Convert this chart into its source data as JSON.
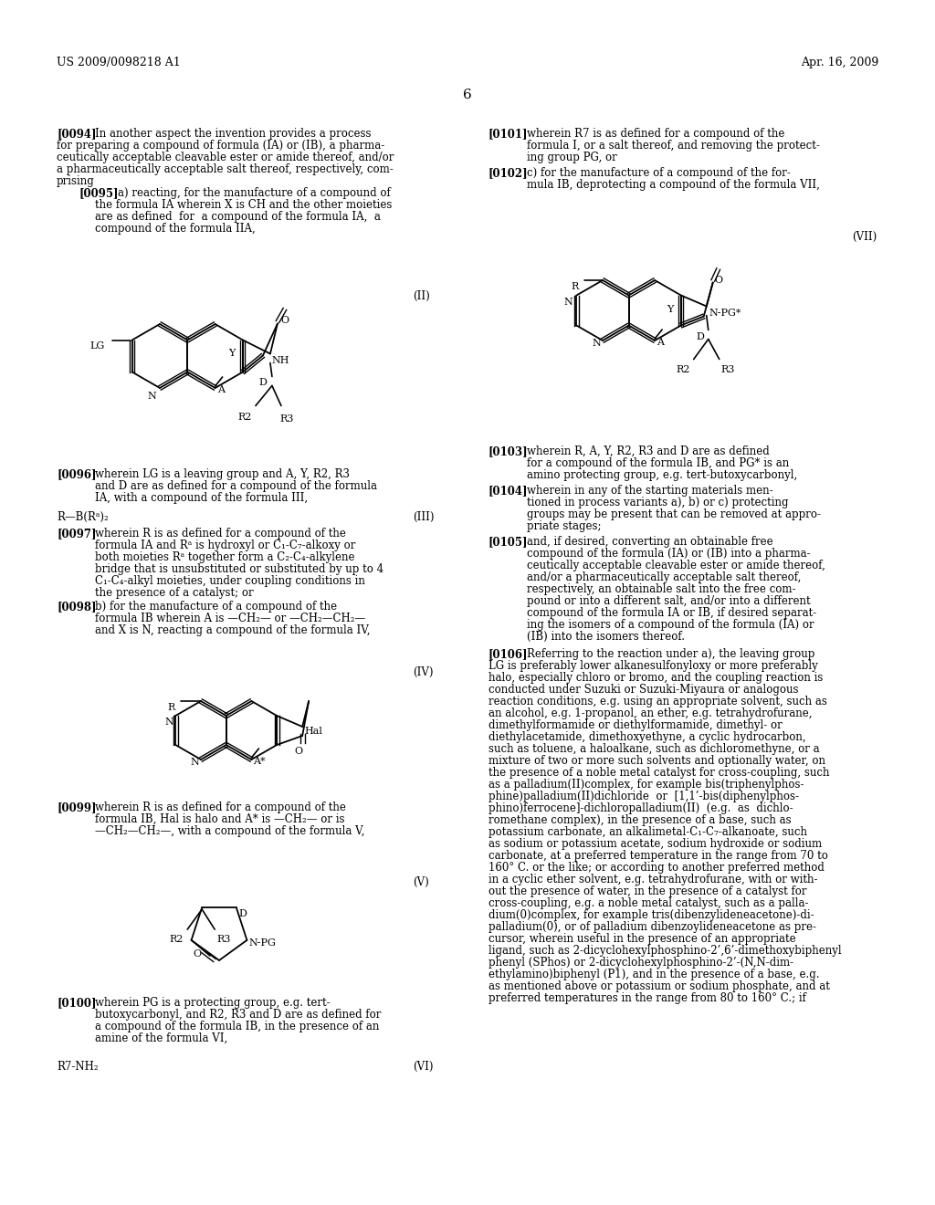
{
  "background_color": "#ffffff",
  "header_left": "US 2009/0098218 A1",
  "header_right": "Apr. 16, 2009",
  "page_number": "6",
  "fig_width": 10.24,
  "fig_height": 13.2,
  "dpi": 100
}
